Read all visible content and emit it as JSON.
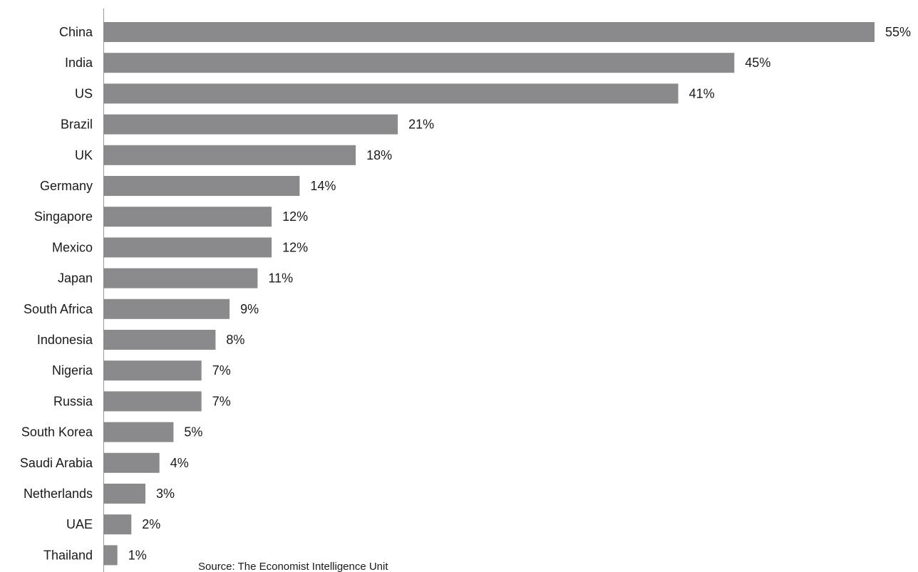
{
  "chart_data": {
    "type": "bar",
    "orientation": "horizontal",
    "categories": [
      "China",
      "India",
      "US",
      "Brazil",
      "UK",
      "Germany",
      "Singapore",
      "Mexico",
      "Japan",
      "South Africa",
      "Indonesia",
      "Nigeria",
      "Russia",
      "South Korea",
      "Saudi Arabia",
      "Netherlands",
      "UAE",
      "Thailand"
    ],
    "values": [
      55,
      45,
      41,
      21,
      18,
      14,
      12,
      12,
      11,
      9,
      8,
      7,
      7,
      5,
      4,
      3,
      2,
      1
    ],
    "value_labels": [
      "55%",
      "45%",
      "41%",
      "21%",
      "18%",
      "14%",
      "12%",
      "12%",
      "11%",
      "9%",
      "8%",
      "7%",
      "7%",
      "5%",
      "4%",
      "3%",
      "2%",
      "1%"
    ],
    "unit": "%",
    "xlim": [
      0,
      55
    ],
    "grid": false,
    "legend": false,
    "bar_color": "#8a8a8c",
    "axis_color": "#9a9a9a",
    "text_color": "#1a1a1a"
  },
  "source_note": "Source: The Economist Intelligence Unit"
}
